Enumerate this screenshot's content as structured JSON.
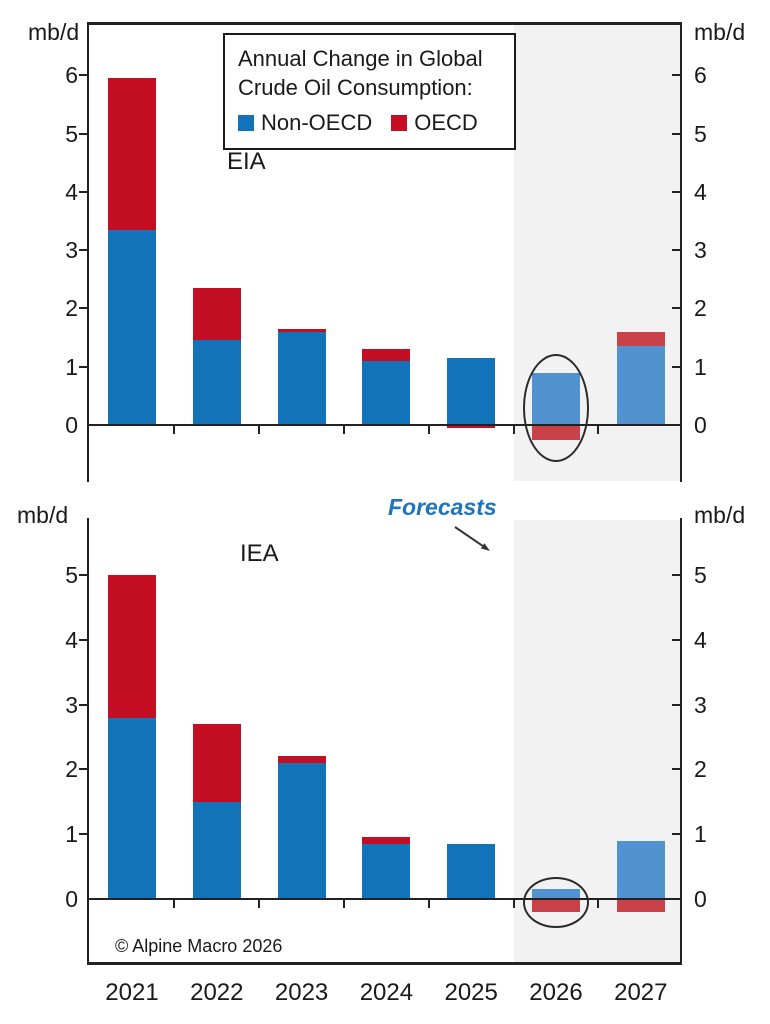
{
  "labels": {
    "unit": "mb/d",
    "forecast": "Forecasts",
    "copyright": "© Alpine Macro 2026"
  },
  "legend": {
    "title_line1": "Annual Change in Global",
    "title_line2": "Crude Oil Consumption:",
    "items": [
      {
        "label": "Non-OECD"
      },
      {
        "label": "OECD"
      }
    ]
  },
  "colors": {
    "non_oecd": "#1273B9",
    "oecd": "#C30E23",
    "non_oecd_forecast": "#5093CF",
    "oecd_forecast": "#C94249",
    "forecast_region": "#F2F2F2",
    "axis": "#222222",
    "annotation": "#2B2B2B",
    "forecast_label": "#1F75BC"
  },
  "chart_data": [
    {
      "type": "bar",
      "stacked": true,
      "panel": "EIA",
      "title": "Annual Change in Global Crude Oil Consumption",
      "ylabel": "mb/d",
      "categories": [
        "2021",
        "2022",
        "2023",
        "2024",
        "2025",
        "2026",
        "2027"
      ],
      "series": [
        {
          "name": "Non-OECD",
          "color": "#1273B9",
          "forecast_color": "#5093CF",
          "values": [
            3.35,
            1.45,
            1.6,
            1.1,
            1.15,
            0.9,
            1.35
          ]
        },
        {
          "name": "OECD",
          "color": "#C30E23",
          "forecast_color": "#C94249",
          "values": [
            2.6,
            0.9,
            0.05,
            0.2,
            -0.05,
            -0.25,
            0.25
          ]
        }
      ],
      "yticks": [
        0,
        1,
        2,
        3,
        4,
        5,
        6
      ],
      "ylim": [
        -1,
        7
      ],
      "grid": false,
      "forecast_categories": [
        "2026",
        "2027"
      ],
      "highlighted_category": "2026"
    },
    {
      "type": "bar",
      "stacked": true,
      "panel": "IEA",
      "title": "Annual Change in Global Crude Oil Consumption",
      "ylabel": "mb/d",
      "categories": [
        "2021",
        "2022",
        "2023",
        "2024",
        "2025",
        "2026",
        "2027"
      ],
      "series": [
        {
          "name": "Non-OECD",
          "color": "#1273B9",
          "forecast_color": "#5093CF",
          "values": [
            2.8,
            1.5,
            2.1,
            0.85,
            0.85,
            0.15,
            0.9
          ]
        },
        {
          "name": "OECD",
          "color": "#C30E23",
          "forecast_color": "#C94249",
          "values": [
            2.2,
            1.2,
            0.1,
            0.1,
            0,
            -0.2,
            -0.2
          ]
        }
      ],
      "yticks": [
        0,
        1,
        2,
        3,
        4,
        5
      ],
      "ylim": [
        -1,
        6
      ],
      "grid": false,
      "forecast_categories": [
        "2026",
        "2027"
      ],
      "highlighted_category": "2026"
    }
  ]
}
